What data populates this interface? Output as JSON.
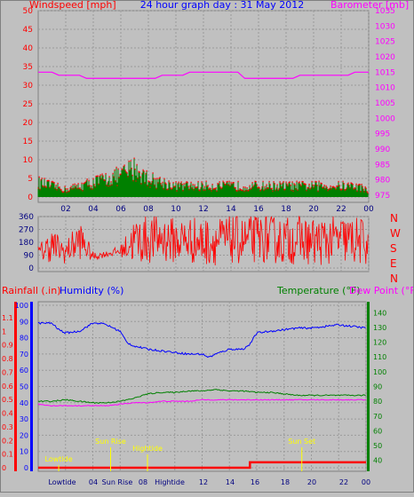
{
  "header": {
    "wind_label": "Windspeed [mph]",
    "title": "24 hour graph day : 31 May 2012",
    "baro_label": "Barometer [mb]"
  },
  "colors": {
    "background": "#c0c0c0",
    "wind_axis": "#ff0000",
    "wind_gust": "#ff0000",
    "wind_avg": "#008000",
    "barometer": "#ff00ff",
    "title": "#0000ff",
    "direction": "#ff0000",
    "humidity": "#0000ff",
    "temperature": "#008000",
    "dew_point": "#ff00ff",
    "rainfall": "#ff0000",
    "events": "#ffff00",
    "axis_text": "#000080"
  },
  "time_ticks": [
    "02",
    "04",
    "06",
    "08",
    "10",
    "12",
    "14",
    "16",
    "18",
    "20",
    "22",
    "00"
  ],
  "wind_ticks": [
    "50",
    "45",
    "40",
    "35",
    "30",
    "25",
    "20",
    "15",
    "10",
    "5",
    "0"
  ],
  "baro_ticks": [
    "1035",
    "1030",
    "1025",
    "1020",
    "1015",
    "1010",
    "1005",
    "1000",
    "995",
    "990",
    "985",
    "980",
    "975"
  ],
  "direction": {
    "ticks": [
      "360",
      "270",
      "180",
      "90",
      "0"
    ],
    "letters": [
      "N",
      "W",
      "S",
      "E",
      "N"
    ]
  },
  "lower_labels": {
    "rainfall": "Rainfall (.in)",
    "humidity": "Humidity (%)",
    "temperature": "Temperature (°F)",
    "dew_point": "Dew Point (°F)"
  },
  "rain_ticks": [
    "1.1",
    "1",
    "0.9",
    "0.8",
    "0.7",
    "0.6",
    "0.5",
    "0.4",
    "0.3",
    "0.2",
    "0.1",
    "0"
  ],
  "hum_ticks": [
    "100",
    "90",
    "80",
    "70",
    "60",
    "50",
    "40",
    "30",
    "20",
    "10",
    "0"
  ],
  "temp_ticks": [
    "140",
    "130",
    "120",
    "110",
    "100",
    "90",
    "80",
    "70",
    "60",
    "50",
    "40"
  ],
  "event_labels": {
    "lowtide": "Lowtide",
    "sunrise": "Sun Rise",
    "hightide": "Hightide",
    "sunset": "Sun Set"
  },
  "bottom_axis": [
    "Lowtide",
    "04",
    "Sun Rise",
    "08",
    "Hightide",
    "12",
    "14",
    "16",
    "18",
    "20",
    "22",
    "00"
  ],
  "chart_data": [
    {
      "type": "line",
      "title": "24 hour graph day : 31 May 2012",
      "ylabel": "Windspeed [mph]",
      "ylim": [
        0,
        50
      ],
      "y2label": "Barometer [mb]",
      "y2lim": [
        972.5,
        1035
      ],
      "series": [
        {
          "name": "Barometer [mb]",
          "axis": "right",
          "x_hours": [
            0,
            1,
            1.5,
            3,
            3.5,
            8.5,
            9,
            10.5,
            11,
            14.5,
            15,
            18.5,
            19,
            22.5,
            23,
            24
          ],
          "values": [
            1015,
            1015,
            1014,
            1014,
            1013,
            1013,
            1014,
            1014,
            1015,
            1015,
            1013,
            1013,
            1014,
            1014,
            1015,
            1015
          ]
        },
        {
          "name": "Windspeed gust [mph]",
          "x_hours": [
            0,
            1,
            2,
            3,
            4,
            5,
            6,
            7,
            8,
            9,
            10,
            11,
            12,
            13,
            14,
            15,
            16,
            17,
            18,
            19,
            20,
            21,
            22,
            23,
            24
          ],
          "values": [
            4,
            3,
            2,
            3,
            4,
            5,
            6,
            8,
            5,
            4,
            3,
            3,
            3,
            3,
            3,
            3,
            3,
            3,
            3,
            3,
            3,
            3,
            3,
            3,
            2
          ]
        },
        {
          "name": "Windspeed average [mph]",
          "x_hours": [
            0,
            1,
            2,
            3,
            4,
            5,
            6,
            7,
            8,
            9,
            10,
            11,
            12,
            13,
            14,
            15,
            16,
            17,
            18,
            19,
            20,
            21,
            22,
            23,
            24
          ],
          "values": [
            2,
            1,
            1,
            1,
            2,
            3,
            3,
            4,
            3,
            2,
            1.5,
            1.5,
            1.5,
            1.5,
            1.5,
            1.5,
            1.5,
            1.5,
            1.5,
            1.5,
            1.5,
            1.5,
            1.5,
            1.5,
            1
          ]
        }
      ]
    },
    {
      "type": "line",
      "ylim": [
        0,
        360
      ],
      "series": [
        {
          "name": "Wind direction",
          "x_hours": [
            0,
            1,
            2,
            3,
            4,
            5,
            6,
            7,
            8,
            9,
            10,
            11,
            12,
            13,
            14,
            15,
            16,
            17,
            18,
            19,
            20,
            21,
            22,
            23,
            24
          ],
          "values": [
            100,
            160,
            110,
            200,
            80,
            100,
            120,
            190,
            200,
            210,
            190,
            200,
            180,
            190,
            200,
            190,
            210,
            200,
            190,
            200,
            180,
            190,
            200,
            190,
            180
          ],
          "spread": [
            60,
            120,
            80,
            140,
            30,
            20,
            40,
            170,
            170,
            170,
            160,
            170,
            170,
            170,
            170,
            170,
            170,
            170,
            170,
            170,
            170,
            170,
            170,
            170,
            170
          ]
        }
      ]
    },
    {
      "type": "line",
      "ylabel": "Rainfall (.in)",
      "ylim": [
        0,
        1.1
      ],
      "y_humidity_lim": [
        0,
        100
      ],
      "y2label": "Temperature (°F)",
      "y2lim": [
        35,
        145
      ],
      "series": [
        {
          "name": "Humidity (%)",
          "x_hours": [
            0,
            1,
            1.5,
            2,
            3,
            4,
            4.5,
            5,
            6,
            6.5,
            7,
            8,
            9,
            10,
            11,
            12,
            12.5,
            13,
            14,
            15,
            15.5,
            16,
            17,
            18,
            19,
            20,
            21,
            22,
            23,
            24
          ],
          "values": [
            89,
            89,
            85,
            83,
            84,
            89,
            89,
            88,
            84,
            77,
            75,
            73,
            72,
            71,
            70,
            70,
            68,
            70,
            73,
            73,
            76,
            83,
            84,
            85,
            86,
            86,
            87,
            88,
            87,
            86
          ]
        },
        {
          "name": "Temperature (°F)",
          "x_hours": [
            0,
            1,
            2,
            3,
            4,
            5,
            6,
            7,
            8,
            9,
            10,
            11,
            12,
            13,
            14,
            15,
            16,
            17,
            18,
            19,
            20,
            21,
            22,
            23,
            24
          ],
          "values": [
            80,
            80,
            81,
            80,
            79,
            79,
            80,
            82,
            85,
            86,
            86,
            87,
            87,
            88,
            87,
            87,
            86,
            86,
            85,
            84,
            84,
            84,
            84,
            84,
            84
          ]
        },
        {
          "name": "Dew Point (°F)",
          "x_hours": [
            0,
            1,
            2,
            3,
            4,
            5,
            6,
            7,
            8,
            9,
            10,
            11,
            12,
            13,
            14,
            15,
            16,
            17,
            18,
            19,
            20,
            21,
            22,
            23,
            24
          ],
          "values": [
            78,
            77,
            77,
            77,
            77,
            77,
            78,
            79,
            79,
            80,
            80,
            80,
            81,
            81,
            81,
            81,
            81,
            81,
            81,
            81,
            81,
            81,
            81,
            81,
            81
          ]
        },
        {
          "name": "Rainfall (.in)",
          "x_hours": [
            0,
            15.5,
            15.5,
            24
          ],
          "values": [
            0,
            0,
            0.04,
            0.04
          ]
        }
      ]
    }
  ],
  "events_hours": {
    "lowtide": 1.5,
    "sunrise": 5.3,
    "hightide": 8.0,
    "sunset": 19.3
  }
}
